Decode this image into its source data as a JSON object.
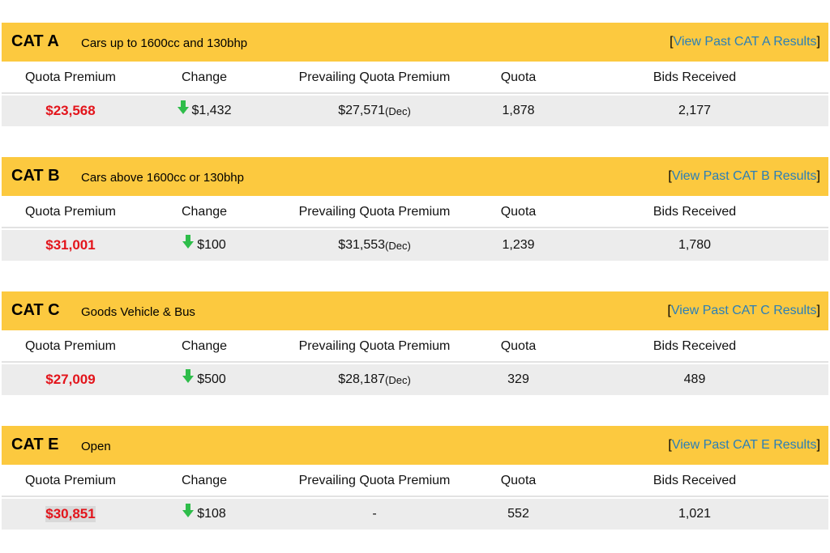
{
  "labels": {
    "quota_premium": "Quota Premium",
    "change": "Change",
    "prevailing": "Prevailing Quota Premium",
    "quota": "Quota",
    "bids": "Bids Received"
  },
  "colors": {
    "header_bg": "#fcc93f",
    "premium": "#e3141b",
    "link": "#2a7fb8",
    "down_arrow": "#2ebd4a"
  },
  "categories": [
    {
      "name": "CAT A",
      "desc": "Cars up to 1600cc and 130bhp",
      "link_open": "[",
      "link_text": "View Past CAT A Results",
      "link_close": "]",
      "premium": "$23,568",
      "change_icon": "down-arrow-icon",
      "change": "$1,432",
      "prevailing": "$27,571",
      "prevailing_month": "(Dec)",
      "quota": "1,878",
      "bids": "2,177"
    },
    {
      "name": "CAT B",
      "desc": "Cars above 1600cc or 130bhp",
      "link_open": "[",
      "link_text": "View Past CAT B Results",
      "link_close": "]",
      "premium": "$31,001",
      "change_icon": "down-arrow-icon",
      "change": "$100",
      "prevailing": "$31,553",
      "prevailing_month": "(Dec)",
      "quota": "1,239",
      "bids": "1,780"
    },
    {
      "name": "CAT C",
      "desc": "Goods Vehicle & Bus",
      "link_open": "[",
      "link_text": "View Past CAT C Results",
      "link_close": "]",
      "premium": "$27,009",
      "change_icon": "down-arrow-icon",
      "change": "$500",
      "prevailing": "$28,187",
      "prevailing_month": "(Dec)",
      "quota": "329",
      "bids": "489"
    },
    {
      "name": "CAT E",
      "desc": "Open",
      "link_open": "[",
      "link_text": "View Past CAT E Results",
      "link_close": "]",
      "premium": "$30,851",
      "change_icon": "down-arrow-icon",
      "change": "$108",
      "prevailing": "-",
      "prevailing_month": "",
      "quota": "552",
      "bids": "1,021"
    }
  ]
}
